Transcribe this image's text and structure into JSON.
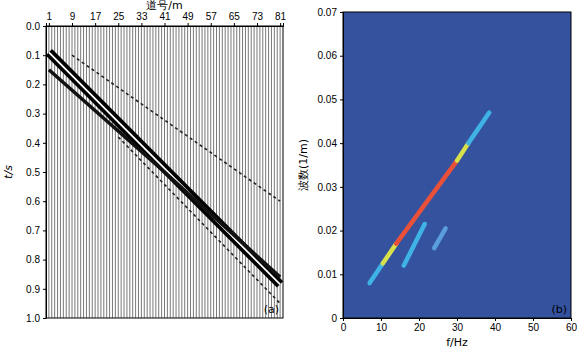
{
  "chart_data": [
    {
      "type": "seismic_wiggle",
      "x_label": "道号/m",
      "y_label": "t/s",
      "annotation": "(a)",
      "xlim": [
        0,
        82
      ],
      "ylim": [
        0,
        1
      ],
      "xticks": [
        1,
        9,
        17,
        25,
        33,
        41,
        49,
        57,
        65,
        73,
        81
      ],
      "yticks": [
        {
          "value": 0,
          "label": "0.0"
        },
        {
          "value": 0.1,
          "label": "0.1"
        },
        {
          "value": 0.2,
          "label": "0.2"
        },
        {
          "value": 0.3,
          "label": "0.3"
        },
        {
          "value": 0.4,
          "label": "0.4"
        },
        {
          "value": 0.5,
          "label": "0.5"
        },
        {
          "value": 0.6,
          "label": "0.6"
        },
        {
          "value": 0.7,
          "label": "0.7"
        },
        {
          "value": 0.8,
          "label": "0.8"
        },
        {
          "value": 0.9,
          "label": "0.9"
        },
        {
          "value": 1,
          "label": "1.0"
        }
      ],
      "traces": [
        1,
        2,
        3,
        4,
        5,
        6,
        7,
        8,
        9,
        10,
        11,
        12,
        13,
        14,
        15,
        16,
        17,
        18,
        19,
        20,
        21,
        22,
        23,
        24,
        25,
        26,
        27,
        28,
        29,
        30,
        31,
        32,
        33,
        34,
        35,
        36,
        37,
        38,
        39,
        40,
        41,
        42,
        43,
        44,
        45,
        46,
        47,
        48,
        49,
        50,
        51,
        52,
        53,
        54,
        55,
        56,
        57,
        58,
        59,
        60,
        61,
        62,
        63,
        64,
        65,
        66,
        67,
        68,
        69,
        70,
        71,
        72,
        73,
        74,
        75,
        76,
        77,
        78,
        79,
        80,
        81
      ],
      "events": [
        {
          "line_style": "bold",
          "x": [
            1,
            81
          ],
          "t": [
            0.09,
            0.885
          ]
        },
        {
          "line_style": "solid",
          "x": [
            1,
            41,
            81
          ],
          "t": [
            0.15,
            0.5,
            0.86
          ]
        },
        {
          "line_style": "dashed",
          "x": [
            9,
            81
          ],
          "t": [
            0.1,
            0.6
          ]
        },
        {
          "line_style": "dashed",
          "x": [
            25,
            81
          ],
          "t": [
            0.38,
            0.95
          ]
        }
      ]
    },
    {
      "type": "fk_spectrum",
      "x_label": "f/Hz",
      "y_label": "波数(1/m)",
      "annotation": "(b)",
      "xlim": [
        0,
        60
      ],
      "ylim": [
        0,
        0.07
      ],
      "xticks": [
        0,
        10,
        20,
        30,
        40,
        50,
        60
      ],
      "yticks": [
        0,
        0.01,
        0.02,
        0.03,
        0.04,
        0.05,
        0.06,
        0.07
      ],
      "ridges": [
        {
          "color": "#3fb3e6",
          "x": [
            7,
            10.5
          ],
          "values": [
            0.008,
            0.0125
          ]
        },
        {
          "color": "#d8e04a",
          "x": [
            10.5,
            14
          ],
          "values": [
            0.0125,
            0.017
          ]
        },
        {
          "color": "#e8503a",
          "x": [
            14,
            30
          ],
          "values": [
            0.017,
            0.036
          ]
        },
        {
          "color": "#d8e04a",
          "x": [
            30,
            33
          ],
          "values": [
            0.036,
            0.04
          ]
        },
        {
          "color": "#3fb3e6",
          "x": [
            33,
            38.5
          ],
          "values": [
            0.04,
            0.047
          ]
        },
        {
          "color": "#3fb3e6",
          "x": [
            16,
            21.5
          ],
          "values": [
            0.012,
            0.0215
          ]
        },
        {
          "color": "#5a9fdc",
          "x": [
            24,
            27
          ],
          "values": [
            0.016,
            0.0205
          ]
        }
      ]
    }
  ]
}
